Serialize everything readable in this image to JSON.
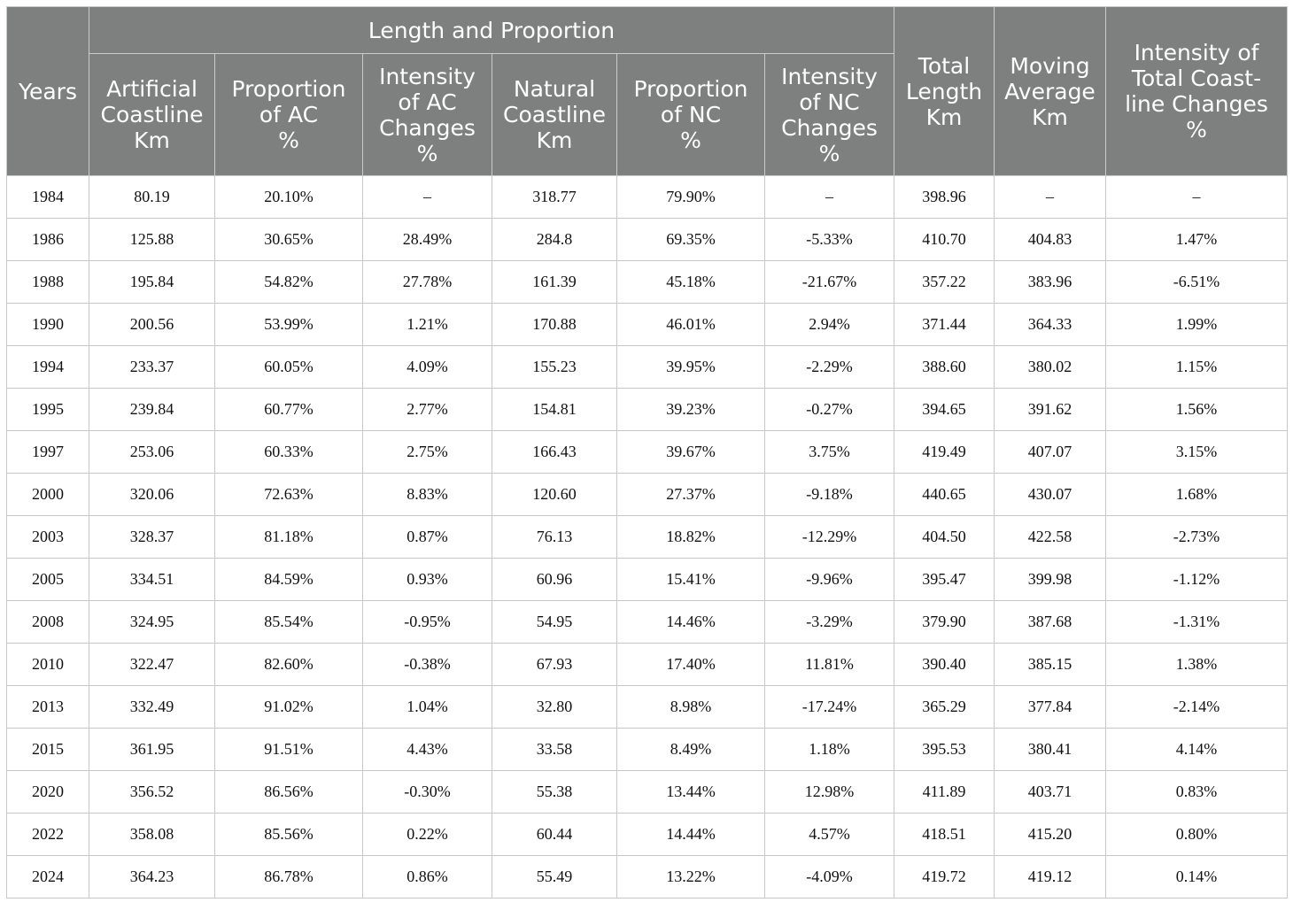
{
  "table": {
    "headers": {
      "years": "Years",
      "group": "Length and Proportion",
      "artificial_coastline": "Artificial\nCoastline\nKm",
      "proportion_ac": "Proportion\nof AC\n%",
      "intensity_ac": "Intensity\nof AC\nChanges\n%",
      "natural_coastline": "Natural\nCoastline\nKm",
      "proportion_nc": "Proportion\nof NC\n%",
      "intensity_nc": "Intensity\nof NC\nChanges\n%",
      "total_length": "Total\nLength\nKm",
      "moving_average": "Moving\nAverage\nKm",
      "intensity_total": "Intensity of\nTotal Coast-\nline Changes\n%"
    },
    "rows": [
      [
        "1984",
        "80.19",
        "20.10%",
        "–",
        "318.77",
        "79.90%",
        "–",
        "398.96",
        "–",
        "–"
      ],
      [
        "1986",
        "125.88",
        "30.65%",
        "28.49%",
        "284.8",
        "69.35%",
        "-5.33%",
        "410.70",
        "404.83",
        "1.47%"
      ],
      [
        "1988",
        "195.84",
        "54.82%",
        "27.78%",
        "161.39",
        "45.18%",
        "-21.67%",
        "357.22",
        "383.96",
        "-6.51%"
      ],
      [
        "1990",
        "200.56",
        "53.99%",
        "1.21%",
        "170.88",
        "46.01%",
        "2.94%",
        "371.44",
        "364.33",
        "1.99%"
      ],
      [
        "1994",
        "233.37",
        "60.05%",
        "4.09%",
        "155.23",
        "39.95%",
        "-2.29%",
        "388.60",
        "380.02",
        "1.15%"
      ],
      [
        "1995",
        "239.84",
        "60.77%",
        "2.77%",
        "154.81",
        "39.23%",
        "-0.27%",
        "394.65",
        "391.62",
        "1.56%"
      ],
      [
        "1997",
        "253.06",
        "60.33%",
        "2.75%",
        "166.43",
        "39.67%",
        "3.75%",
        "419.49",
        "407.07",
        "3.15%"
      ],
      [
        "2000",
        "320.06",
        "72.63%",
        "8.83%",
        "120.60",
        "27.37%",
        "-9.18%",
        "440.65",
        "430.07",
        "1.68%"
      ],
      [
        "2003",
        "328.37",
        "81.18%",
        "0.87%",
        "76.13",
        "18.82%",
        "-12.29%",
        "404.50",
        "422.58",
        "-2.73%"
      ],
      [
        "2005",
        "334.51",
        "84.59%",
        "0.93%",
        "60.96",
        "15.41%",
        "-9.96%",
        "395.47",
        "399.98",
        "-1.12%"
      ],
      [
        "2008",
        "324.95",
        "85.54%",
        "-0.95%",
        "54.95",
        "14.46%",
        "-3.29%",
        "379.90",
        "387.68",
        "-1.31%"
      ],
      [
        "2010",
        "322.47",
        "82.60%",
        "-0.38%",
        "67.93",
        "17.40%",
        "11.81%",
        "390.40",
        "385.15",
        "1.38%"
      ],
      [
        "2013",
        "332.49",
        "91.02%",
        "1.04%",
        "32.80",
        "8.98%",
        "-17.24%",
        "365.29",
        "377.84",
        "-2.14%"
      ],
      [
        "2015",
        "361.95",
        "91.51%",
        "4.43%",
        "33.58",
        "8.49%",
        "1.18%",
        "395.53",
        "380.41",
        "4.14%"
      ],
      [
        "2020",
        "356.52",
        "86.56%",
        "-0.30%",
        "55.38",
        "13.44%",
        "12.98%",
        "411.89",
        "403.71",
        "0.83%"
      ],
      [
        "2022",
        "358.08",
        "85.56%",
        "0.22%",
        "60.44",
        "14.44%",
        "4.57%",
        "418.51",
        "415.20",
        "0.80%"
      ],
      [
        "2024",
        "364.23",
        "86.78%",
        "0.86%",
        "55.49",
        "13.22%",
        "-4.09%",
        "419.72",
        "419.12",
        "0.14%"
      ]
    ]
  }
}
